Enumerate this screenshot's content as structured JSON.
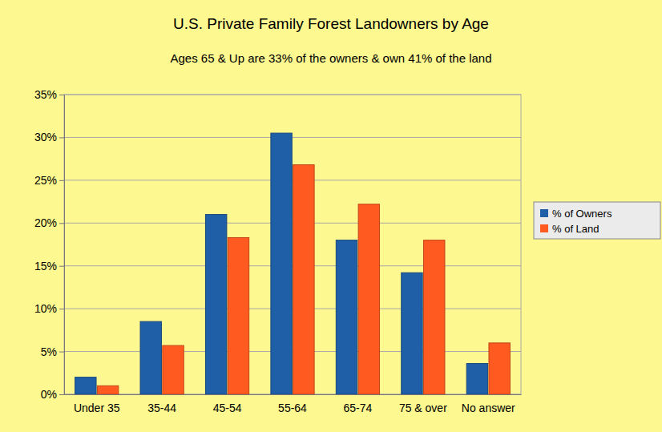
{
  "chart_data": {
    "type": "bar",
    "title": "U.S. Private Family Forest Landowners by Age",
    "subtitle": "Ages 65 & Up are 33% of the owners & own 41% of the land",
    "categories": [
      "Under 35",
      "35-44",
      "45-54",
      "55-64",
      "65-74",
      "75 & over",
      "No answer"
    ],
    "series": [
      {
        "name": "% of Owners",
        "color": "#1f5fa8",
        "values": [
          2,
          8.5,
          21,
          30.5,
          18,
          14.2,
          3.6
        ]
      },
      {
        "name": "% of Land",
        "color": "#ff5a1f",
        "values": [
          1,
          5.7,
          18.3,
          26.8,
          22.2,
          18,
          6
        ]
      }
    ],
    "ylim": [
      0,
      35
    ],
    "yticks": [
      {
        "value": 0,
        "label": "0%"
      },
      {
        "value": 5,
        "label": "5%"
      },
      {
        "value": 10,
        "label": "10%"
      },
      {
        "value": 15,
        "label": "15%"
      },
      {
        "value": 20,
        "label": "20%"
      },
      {
        "value": 25,
        "label": "25%"
      },
      {
        "value": 30,
        "label": "30%"
      },
      {
        "value": 35,
        "label": "35%"
      }
    ],
    "grid": true,
    "legend": "right"
  }
}
